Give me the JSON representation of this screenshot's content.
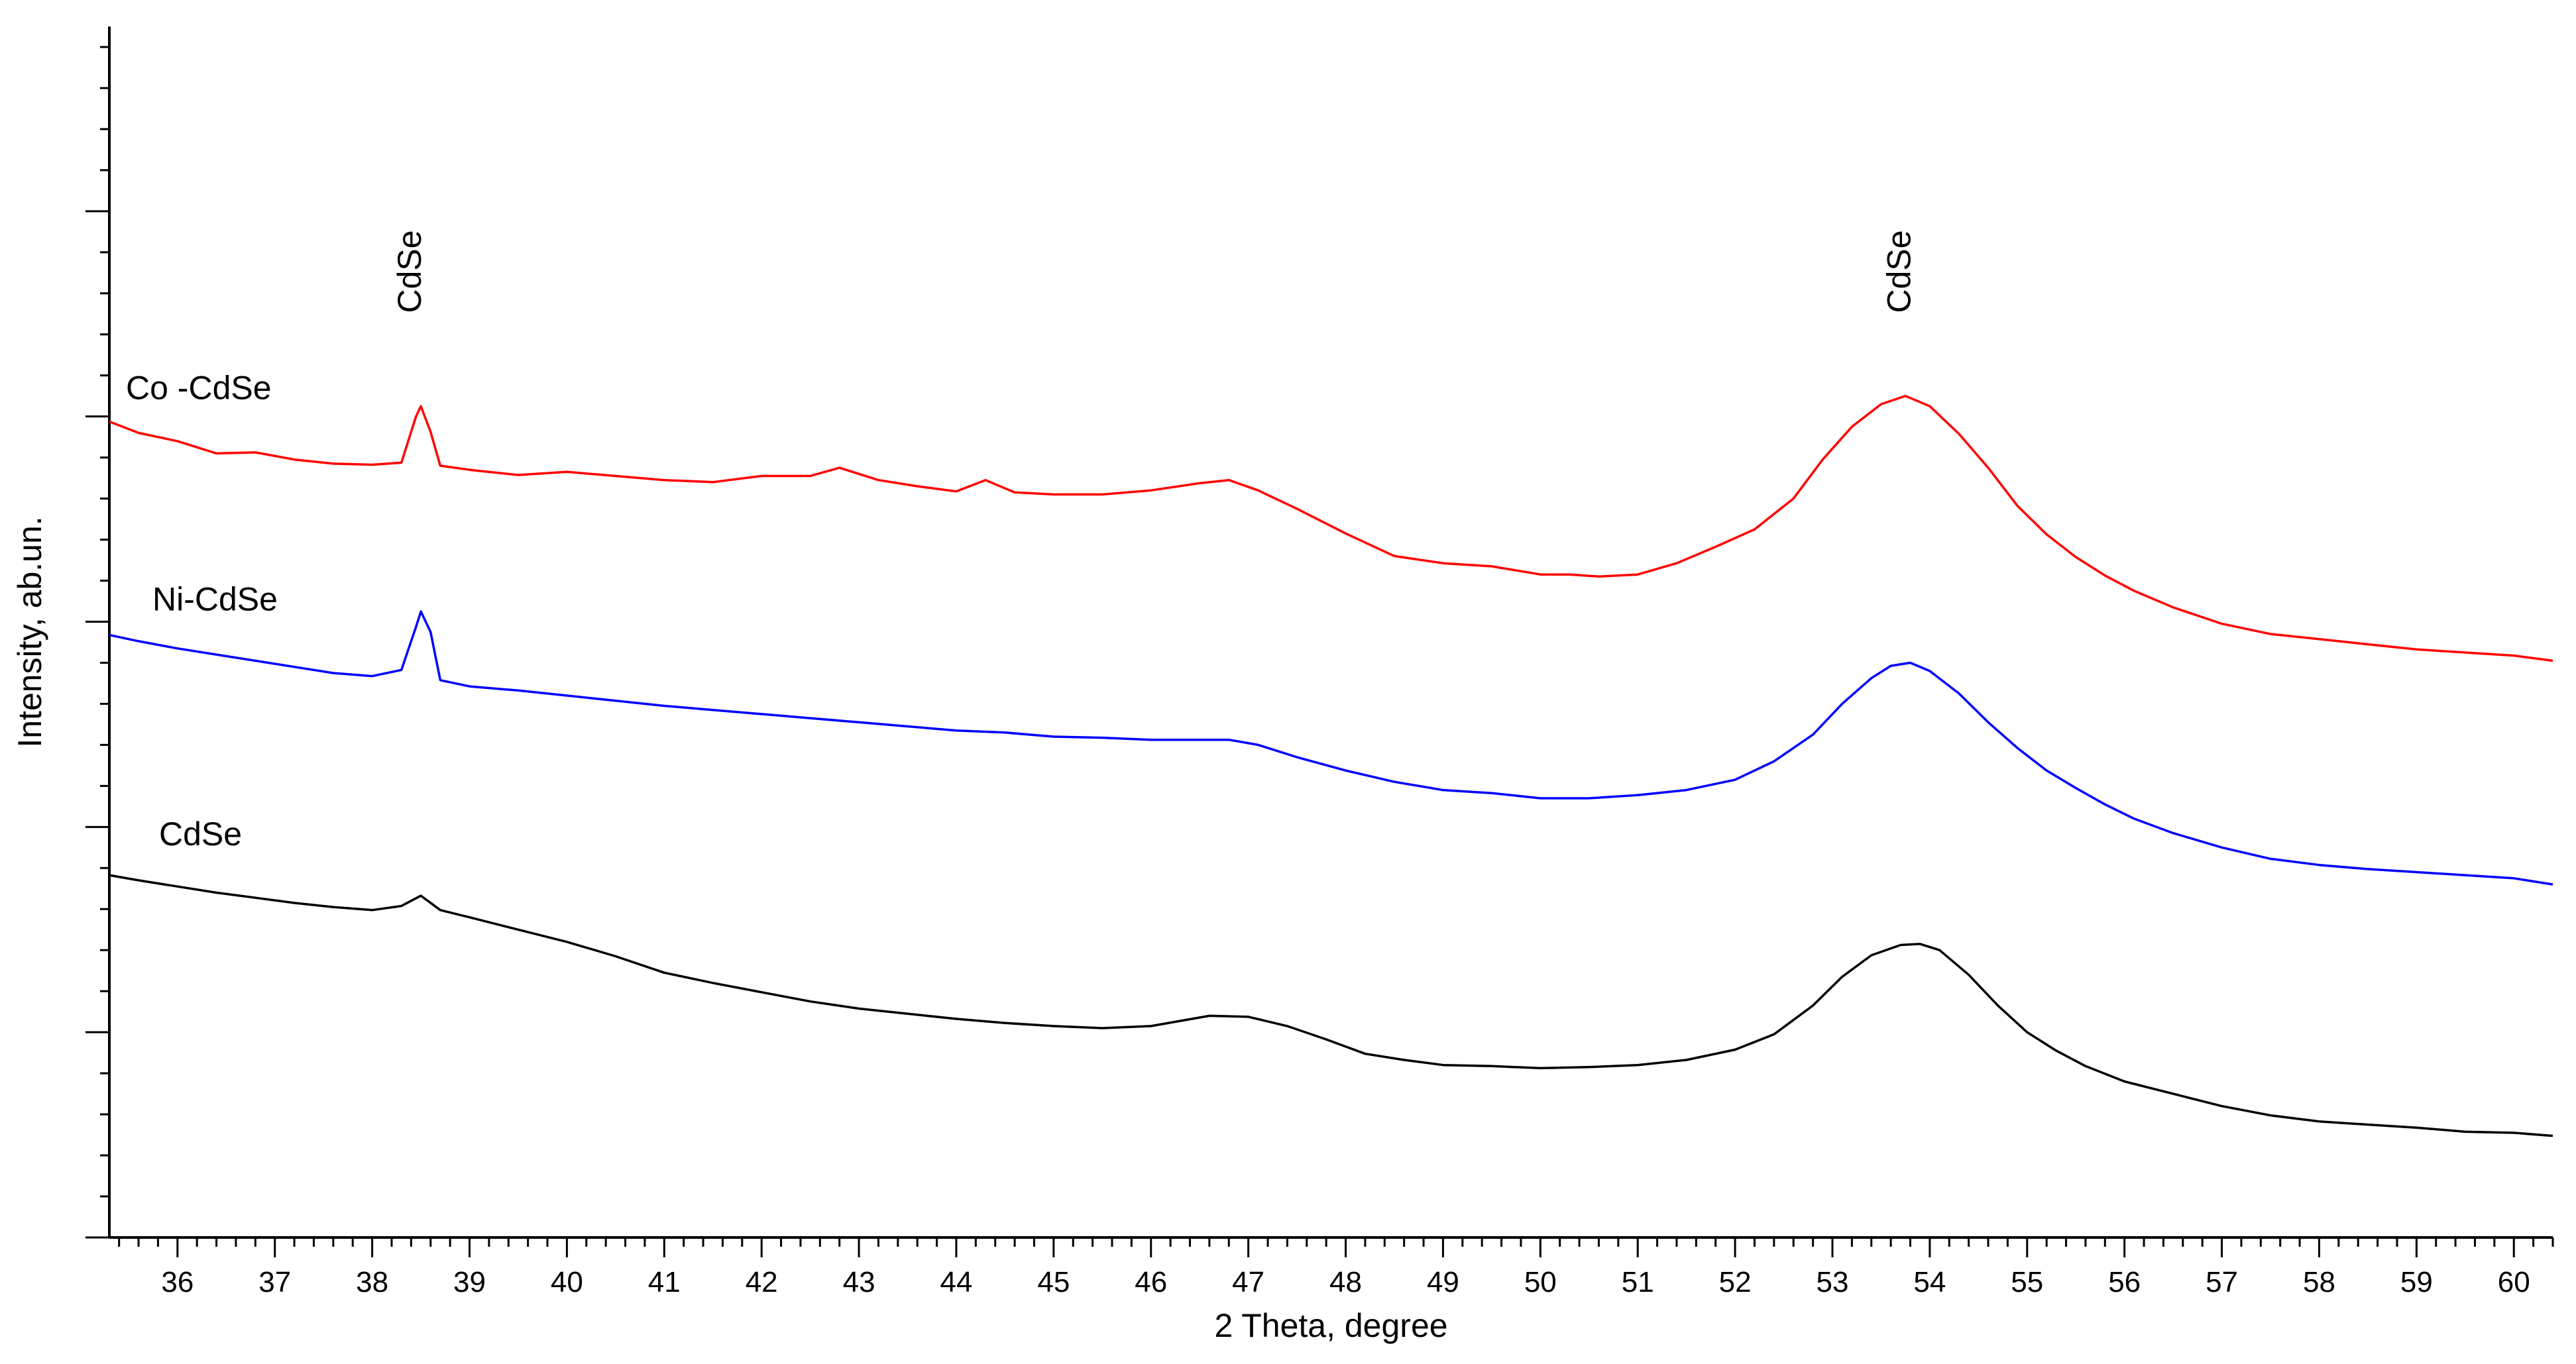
{
  "chart_data": {
    "type": "line",
    "title": "",
    "xlabel": "2 Theta, degree",
    "ylabel": "Intensity, ab.un.",
    "xlim": [
      35.3,
      60.4
    ],
    "ylim": [
      0,
      118
    ],
    "x_ticks": [
      "36",
      "37",
      "38",
      "39",
      "40",
      "41",
      "42",
      "43",
      "44",
      "45",
      "46",
      "47",
      "48",
      "49",
      "50",
      "51",
      "52",
      "53",
      "54",
      "55",
      "56",
      "57",
      "58",
      "59",
      "60"
    ],
    "y_tick_labels_shown": false,
    "grid": false,
    "legend": "none",
    "series": [
      {
        "name": "Co -CdSe",
        "color": "#ff0000",
        "label_color": "#000000",
        "points": [
          [
            35.3,
            79.5
          ],
          [
            35.6,
            78.4
          ],
          [
            36.0,
            77.6
          ],
          [
            36.4,
            76.4
          ],
          [
            36.8,
            76.5
          ],
          [
            37.2,
            75.8
          ],
          [
            37.6,
            75.4
          ],
          [
            38.0,
            75.3
          ],
          [
            38.3,
            75.5
          ],
          [
            38.45,
            80.0
          ],
          [
            38.5,
            81.0
          ],
          [
            38.6,
            78.5
          ],
          [
            38.7,
            75.2
          ],
          [
            39.0,
            74.8
          ],
          [
            39.5,
            74.3
          ],
          [
            40.0,
            74.6
          ],
          [
            40.5,
            74.2
          ],
          [
            41.0,
            73.8
          ],
          [
            41.5,
            73.6
          ],
          [
            42.0,
            74.2
          ],
          [
            42.5,
            74.2
          ],
          [
            42.8,
            75.0
          ],
          [
            43.2,
            73.8
          ],
          [
            43.6,
            73.2
          ],
          [
            44.0,
            72.7
          ],
          [
            44.3,
            73.8
          ],
          [
            44.6,
            72.6
          ],
          [
            45.0,
            72.4
          ],
          [
            45.5,
            72.4
          ],
          [
            46.0,
            72.8
          ],
          [
            46.5,
            73.5
          ],
          [
            46.8,
            73.8
          ],
          [
            47.1,
            72.8
          ],
          [
            47.5,
            71.0
          ],
          [
            48.0,
            68.6
          ],
          [
            48.5,
            66.4
          ],
          [
            49.0,
            65.7
          ],
          [
            49.5,
            65.4
          ],
          [
            50.0,
            64.6
          ],
          [
            50.3,
            64.6
          ],
          [
            50.6,
            64.4
          ],
          [
            51.0,
            64.6
          ],
          [
            51.4,
            65.7
          ],
          [
            51.8,
            67.3
          ],
          [
            52.2,
            69.0
          ],
          [
            52.6,
            72.0
          ],
          [
            52.9,
            75.8
          ],
          [
            53.2,
            79.0
          ],
          [
            53.5,
            81.2
          ],
          [
            53.75,
            82.0
          ],
          [
            54.0,
            81.0
          ],
          [
            54.3,
            78.3
          ],
          [
            54.6,
            75.0
          ],
          [
            54.9,
            71.3
          ],
          [
            55.2,
            68.5
          ],
          [
            55.5,
            66.3
          ],
          [
            55.8,
            64.5
          ],
          [
            56.1,
            63.0
          ],
          [
            56.5,
            61.4
          ],
          [
            57.0,
            59.8
          ],
          [
            57.5,
            58.8
          ],
          [
            58.0,
            58.3
          ],
          [
            58.5,
            57.8
          ],
          [
            59.0,
            57.3
          ],
          [
            59.5,
            57.0
          ],
          [
            60.0,
            56.7
          ],
          [
            60.4,
            56.2
          ]
        ]
      },
      {
        "name": "Ni-CdSe",
        "color": "#0000ff",
        "label_color": "#000000",
        "points": [
          [
            35.3,
            58.7
          ],
          [
            35.6,
            58.1
          ],
          [
            36.0,
            57.4
          ],
          [
            36.4,
            56.8
          ],
          [
            36.8,
            56.2
          ],
          [
            37.2,
            55.6
          ],
          [
            37.6,
            55.0
          ],
          [
            38.0,
            54.7
          ],
          [
            38.3,
            55.3
          ],
          [
            38.45,
            59.5
          ],
          [
            38.5,
            61.0
          ],
          [
            38.6,
            59.0
          ],
          [
            38.7,
            54.3
          ],
          [
            39.0,
            53.7
          ],
          [
            39.5,
            53.3
          ],
          [
            40.0,
            52.8
          ],
          [
            40.5,
            52.3
          ],
          [
            41.0,
            51.8
          ],
          [
            41.5,
            51.4
          ],
          [
            42.0,
            51.0
          ],
          [
            42.5,
            50.6
          ],
          [
            43.0,
            50.2
          ],
          [
            43.5,
            49.8
          ],
          [
            44.0,
            49.4
          ],
          [
            44.5,
            49.2
          ],
          [
            45.0,
            48.8
          ],
          [
            45.5,
            48.7
          ],
          [
            46.0,
            48.5
          ],
          [
            46.5,
            48.5
          ],
          [
            46.8,
            48.5
          ],
          [
            47.1,
            48.0
          ],
          [
            47.5,
            46.8
          ],
          [
            48.0,
            45.5
          ],
          [
            48.5,
            44.4
          ],
          [
            49.0,
            43.6
          ],
          [
            49.5,
            43.3
          ],
          [
            50.0,
            42.8
          ],
          [
            50.5,
            42.8
          ],
          [
            51.0,
            43.1
          ],
          [
            51.5,
            43.6
          ],
          [
            52.0,
            44.6
          ],
          [
            52.4,
            46.4
          ],
          [
            52.8,
            49.0
          ],
          [
            53.1,
            52.0
          ],
          [
            53.4,
            54.5
          ],
          [
            53.6,
            55.7
          ],
          [
            53.8,
            56.0
          ],
          [
            54.0,
            55.2
          ],
          [
            54.3,
            53.0
          ],
          [
            54.6,
            50.2
          ],
          [
            54.9,
            47.7
          ],
          [
            55.2,
            45.5
          ],
          [
            55.5,
            43.8
          ],
          [
            55.8,
            42.2
          ],
          [
            56.1,
            40.8
          ],
          [
            56.5,
            39.4
          ],
          [
            57.0,
            38.0
          ],
          [
            57.5,
            36.9
          ],
          [
            58.0,
            36.3
          ],
          [
            58.5,
            35.9
          ],
          [
            59.0,
            35.6
          ],
          [
            59.5,
            35.3
          ],
          [
            60.0,
            35.0
          ],
          [
            60.4,
            34.4
          ]
        ]
      },
      {
        "name": "CdSe",
        "color": "#000000",
        "label_color": "#000000",
        "points": [
          [
            35.3,
            35.3
          ],
          [
            35.6,
            34.8
          ],
          [
            36.0,
            34.2
          ],
          [
            36.4,
            33.6
          ],
          [
            36.8,
            33.1
          ],
          [
            37.2,
            32.6
          ],
          [
            37.6,
            32.2
          ],
          [
            38.0,
            31.9
          ],
          [
            38.3,
            32.3
          ],
          [
            38.5,
            33.3
          ],
          [
            38.7,
            31.9
          ],
          [
            39.0,
            31.2
          ],
          [
            39.5,
            30.0
          ],
          [
            40.0,
            28.8
          ],
          [
            40.5,
            27.4
          ],
          [
            41.0,
            25.8
          ],
          [
            41.5,
            24.8
          ],
          [
            42.0,
            23.9
          ],
          [
            42.5,
            23.0
          ],
          [
            43.0,
            22.3
          ],
          [
            43.5,
            21.8
          ],
          [
            44.0,
            21.3
          ],
          [
            44.5,
            20.9
          ],
          [
            45.0,
            20.6
          ],
          [
            45.5,
            20.4
          ],
          [
            46.0,
            20.6
          ],
          [
            46.3,
            21.1
          ],
          [
            46.6,
            21.6
          ],
          [
            47.0,
            21.5
          ],
          [
            47.4,
            20.6
          ],
          [
            47.8,
            19.3
          ],
          [
            48.2,
            17.9
          ],
          [
            48.6,
            17.3
          ],
          [
            49.0,
            16.8
          ],
          [
            49.5,
            16.7
          ],
          [
            50.0,
            16.5
          ],
          [
            50.5,
            16.6
          ],
          [
            51.0,
            16.8
          ],
          [
            51.5,
            17.3
          ],
          [
            52.0,
            18.3
          ],
          [
            52.4,
            19.8
          ],
          [
            52.8,
            22.6
          ],
          [
            53.1,
            25.4
          ],
          [
            53.4,
            27.5
          ],
          [
            53.7,
            28.5
          ],
          [
            53.9,
            28.6
          ],
          [
            54.1,
            28.0
          ],
          [
            54.4,
            25.6
          ],
          [
            54.7,
            22.6
          ],
          [
            55.0,
            20.0
          ],
          [
            55.3,
            18.2
          ],
          [
            55.6,
            16.7
          ],
          [
            56.0,
            15.2
          ],
          [
            56.5,
            14.0
          ],
          [
            57.0,
            12.8
          ],
          [
            57.5,
            11.9
          ],
          [
            58.0,
            11.3
          ],
          [
            58.5,
            11.0
          ],
          [
            59.0,
            10.7
          ],
          [
            59.5,
            10.3
          ],
          [
            60.0,
            10.2
          ],
          [
            60.4,
            9.9
          ]
        ]
      }
    ],
    "annotations": [
      {
        "text": "CdSe",
        "x": 38.5,
        "orientation": "vertical"
      },
      {
        "text": "CdSe",
        "x": 53.8,
        "orientation": "vertical"
      }
    ]
  }
}
